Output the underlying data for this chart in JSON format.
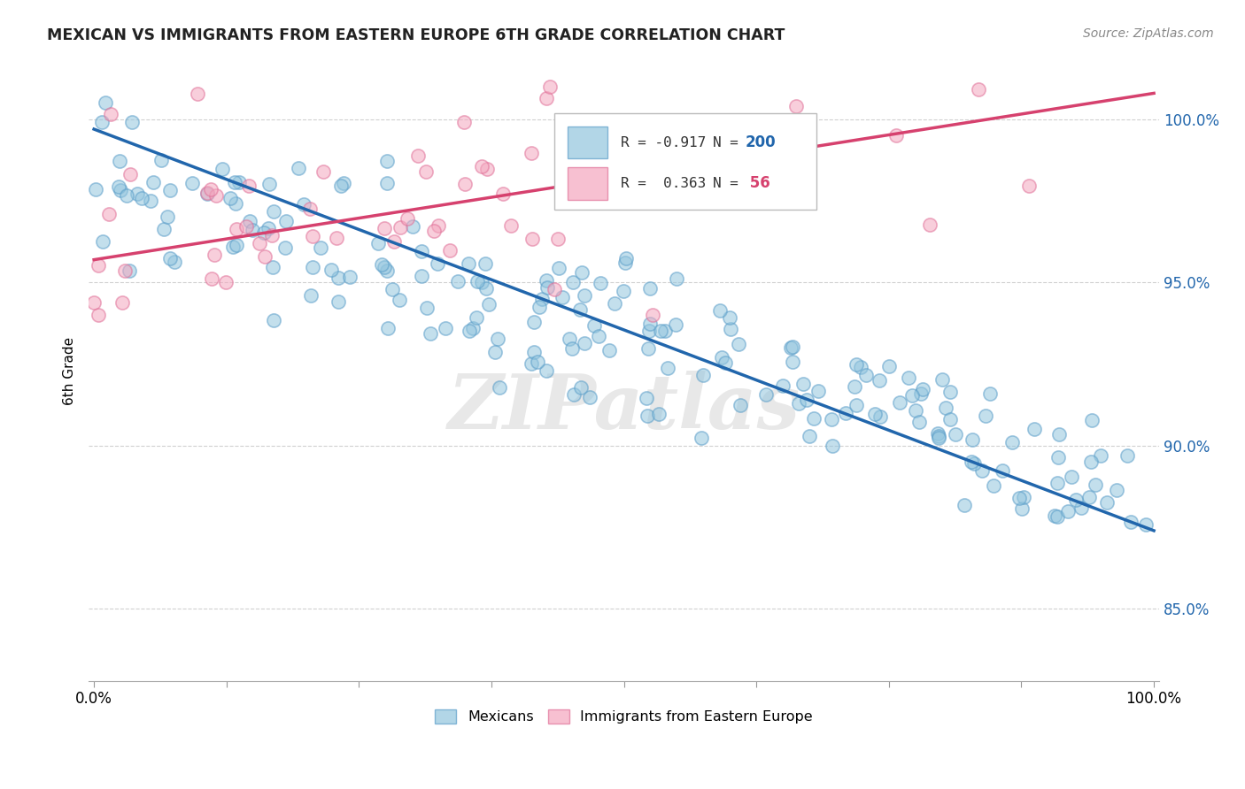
{
  "title": "MEXICAN VS IMMIGRANTS FROM EASTERN EUROPE 6TH GRADE CORRELATION CHART",
  "source": "Source: ZipAtlas.com",
  "ylabel": "6th Grade",
  "ytick_labels": [
    "85.0%",
    "90.0%",
    "95.0%",
    "100.0%"
  ],
  "ytick_values": [
    0.85,
    0.9,
    0.95,
    1.0
  ],
  "legend_blue_label": "Mexicans",
  "legend_pink_label": "Immigrants from Eastern Europe",
  "blue_color": "#92c5de",
  "pink_color": "#f4a6be",
  "blue_edge_color": "#5b9ec9",
  "pink_edge_color": "#e07098",
  "blue_line_color": "#2166ac",
  "pink_line_color": "#d6416e",
  "blue_N": 200,
  "pink_N": 56,
  "blue_R": -0.917,
  "pink_R": 0.363,
  "blue_trend_x": [
    0.0,
    1.0
  ],
  "blue_trend_y": [
    0.997,
    0.874
  ],
  "pink_trend_x": [
    0.0,
    1.0
  ],
  "pink_trend_y": [
    0.957,
    1.008
  ],
  "xlim": [
    -0.005,
    1.005
  ],
  "ylim": [
    0.828,
    1.018
  ],
  "background_color": "#ffffff",
  "grid_color": "#cccccc",
  "watermark": "ZIPatlas"
}
